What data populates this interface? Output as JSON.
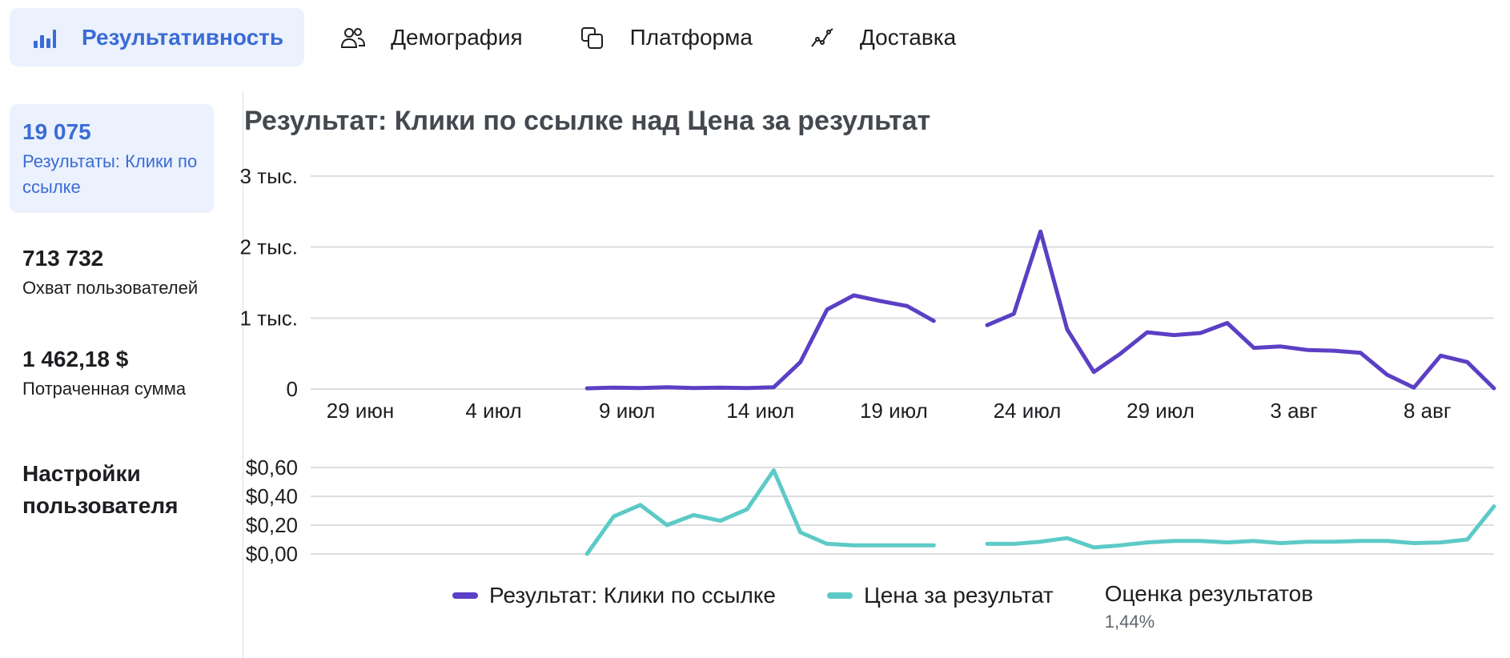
{
  "tabs": [
    {
      "label": "Результативность",
      "icon": "bar-chart-icon",
      "active": true
    },
    {
      "label": "Демография",
      "icon": "people-icon",
      "active": false
    },
    {
      "label": "Платформа",
      "icon": "platform-icon",
      "active": false
    },
    {
      "label": "Доставка",
      "icon": "delivery-icon",
      "active": false
    }
  ],
  "metrics": [
    {
      "value": "19 075",
      "label": "Результаты: Клики по ссылке",
      "active": true
    },
    {
      "value": "713 732",
      "label": "Охват пользователей",
      "active": false
    },
    {
      "value": "1 462,18 $",
      "label": "Потраченная сумма",
      "active": false
    }
  ],
  "settings_title": "Настройки пользователя",
  "colors": {
    "accent": "#3a6cd6",
    "results_line": "#5b3fc4",
    "cost_line": "#5dcac6",
    "gridline": "#dadde1"
  },
  "chart_data": {
    "type": "line",
    "title": "Результат: Клики по ссылке над Цена за результат",
    "x_tick_labels": [
      "29 июн",
      "4 июл",
      "9 июл",
      "14 июл",
      "19 июл",
      "24 июл",
      "29 июл",
      "3 авг",
      "8 авг"
    ],
    "x_start_date": "2023-06-29",
    "top_panel": {
      "y_tick_labels": [
        "0",
        "1 тыс.",
        "2 тыс.",
        "3 тыс."
      ],
      "ylim": [
        0,
        3000
      ],
      "series": [
        {
          "name": "Результат: Клики по ссылке",
          "points": [
            {
              "date": "2023-07-09",
              "y": 10
            },
            {
              "date": "2023-07-10",
              "y": 20
            },
            {
              "date": "2023-07-11",
              "y": 15
            },
            {
              "date": "2023-07-12",
              "y": 25
            },
            {
              "date": "2023-07-13",
              "y": 15
            },
            {
              "date": "2023-07-14",
              "y": 20
            },
            {
              "date": "2023-07-15",
              "y": 15
            },
            {
              "date": "2023-07-16",
              "y": 25
            },
            {
              "date": "2023-07-17",
              "y": 380
            },
            {
              "date": "2023-07-18",
              "y": 1120
            },
            {
              "date": "2023-07-19",
              "y": 1320
            },
            {
              "date": "2023-07-20",
              "y": 1240
            },
            {
              "date": "2023-07-21",
              "y": 1170
            },
            {
              "date": "2023-07-22",
              "y": 960
            },
            {
              "date": "2023-07-23",
              "y": null
            },
            {
              "date": "2023-07-24",
              "y": 900
            },
            {
              "date": "2023-07-25",
              "y": 1060
            },
            {
              "date": "2023-07-26",
              "y": 2220
            },
            {
              "date": "2023-07-27",
              "y": 840
            },
            {
              "date": "2023-07-28",
              "y": 240
            },
            {
              "date": "2023-07-29",
              "y": 500
            },
            {
              "date": "2023-07-30",
              "y": 800
            },
            {
              "date": "2023-07-31",
              "y": 760
            },
            {
              "date": "2023-08-01",
              "y": 790
            },
            {
              "date": "2023-08-02",
              "y": 930
            },
            {
              "date": "2023-08-03",
              "y": 580
            },
            {
              "date": "2023-08-04",
              "y": 600
            },
            {
              "date": "2023-08-05",
              "y": 550
            },
            {
              "date": "2023-08-06",
              "y": 540
            },
            {
              "date": "2023-08-07",
              "y": 510
            },
            {
              "date": "2023-08-08",
              "y": 200
            },
            {
              "date": "2023-08-09",
              "y": 20
            },
            {
              "date": "2023-08-10",
              "y": 470
            },
            {
              "date": "2023-08-11",
              "y": 380
            },
            {
              "date": "2023-08-12",
              "y": 10
            }
          ]
        }
      ]
    },
    "bottom_panel": {
      "y_tick_labels": [
        "$0,00",
        "$0,20",
        "$0,40",
        "$0,60"
      ],
      "ylim": [
        0,
        0.6
      ],
      "series": [
        {
          "name": "Цена за результат",
          "points": [
            {
              "date": "2023-07-09",
              "y": 0.0
            },
            {
              "date": "2023-07-10",
              "y": 0.26
            },
            {
              "date": "2023-07-11",
              "y": 0.34
            },
            {
              "date": "2023-07-12",
              "y": 0.2
            },
            {
              "date": "2023-07-13",
              "y": 0.27
            },
            {
              "date": "2023-07-14",
              "y": 0.23
            },
            {
              "date": "2023-07-15",
              "y": 0.31
            },
            {
              "date": "2023-07-16",
              "y": 0.58
            },
            {
              "date": "2023-07-17",
              "y": 0.15
            },
            {
              "date": "2023-07-18",
              "y": 0.07
            },
            {
              "date": "2023-07-19",
              "y": 0.06
            },
            {
              "date": "2023-07-20",
              "y": 0.06
            },
            {
              "date": "2023-07-21",
              "y": 0.06
            },
            {
              "date": "2023-07-22",
              "y": 0.06
            },
            {
              "date": "2023-07-23",
              "y": null
            },
            {
              "date": "2023-07-24",
              "y": 0.07
            },
            {
              "date": "2023-07-25",
              "y": 0.07
            },
            {
              "date": "2023-07-26",
              "y": 0.085
            },
            {
              "date": "2023-07-27",
              "y": 0.11
            },
            {
              "date": "2023-07-28",
              "y": 0.045
            },
            {
              "date": "2023-07-29",
              "y": 0.06
            },
            {
              "date": "2023-07-30",
              "y": 0.08
            },
            {
              "date": "2023-07-31",
              "y": 0.09
            },
            {
              "date": "2023-08-01",
              "y": 0.09
            },
            {
              "date": "2023-08-02",
              "y": 0.08
            },
            {
              "date": "2023-08-03",
              "y": 0.09
            },
            {
              "date": "2023-08-04",
              "y": 0.075
            },
            {
              "date": "2023-08-05",
              "y": 0.085
            },
            {
              "date": "2023-08-06",
              "y": 0.085
            },
            {
              "date": "2023-08-07",
              "y": 0.09
            },
            {
              "date": "2023-08-08",
              "y": 0.09
            },
            {
              "date": "2023-08-09",
              "y": 0.075
            },
            {
              "date": "2023-08-10",
              "y": 0.08
            },
            {
              "date": "2023-08-11",
              "y": 0.1
            },
            {
              "date": "2023-08-12",
              "y": 0.33
            }
          ]
        }
      ]
    },
    "legend": [
      {
        "name": "Результат: Клики по ссылке",
        "color": "#5b3fc4"
      },
      {
        "name": "Цена за результат",
        "color": "#5dcac6"
      }
    ],
    "estimate": {
      "label": "Оценка результатов",
      "value": "1,44%"
    },
    "grid": true,
    "legend_position": "bottom"
  }
}
